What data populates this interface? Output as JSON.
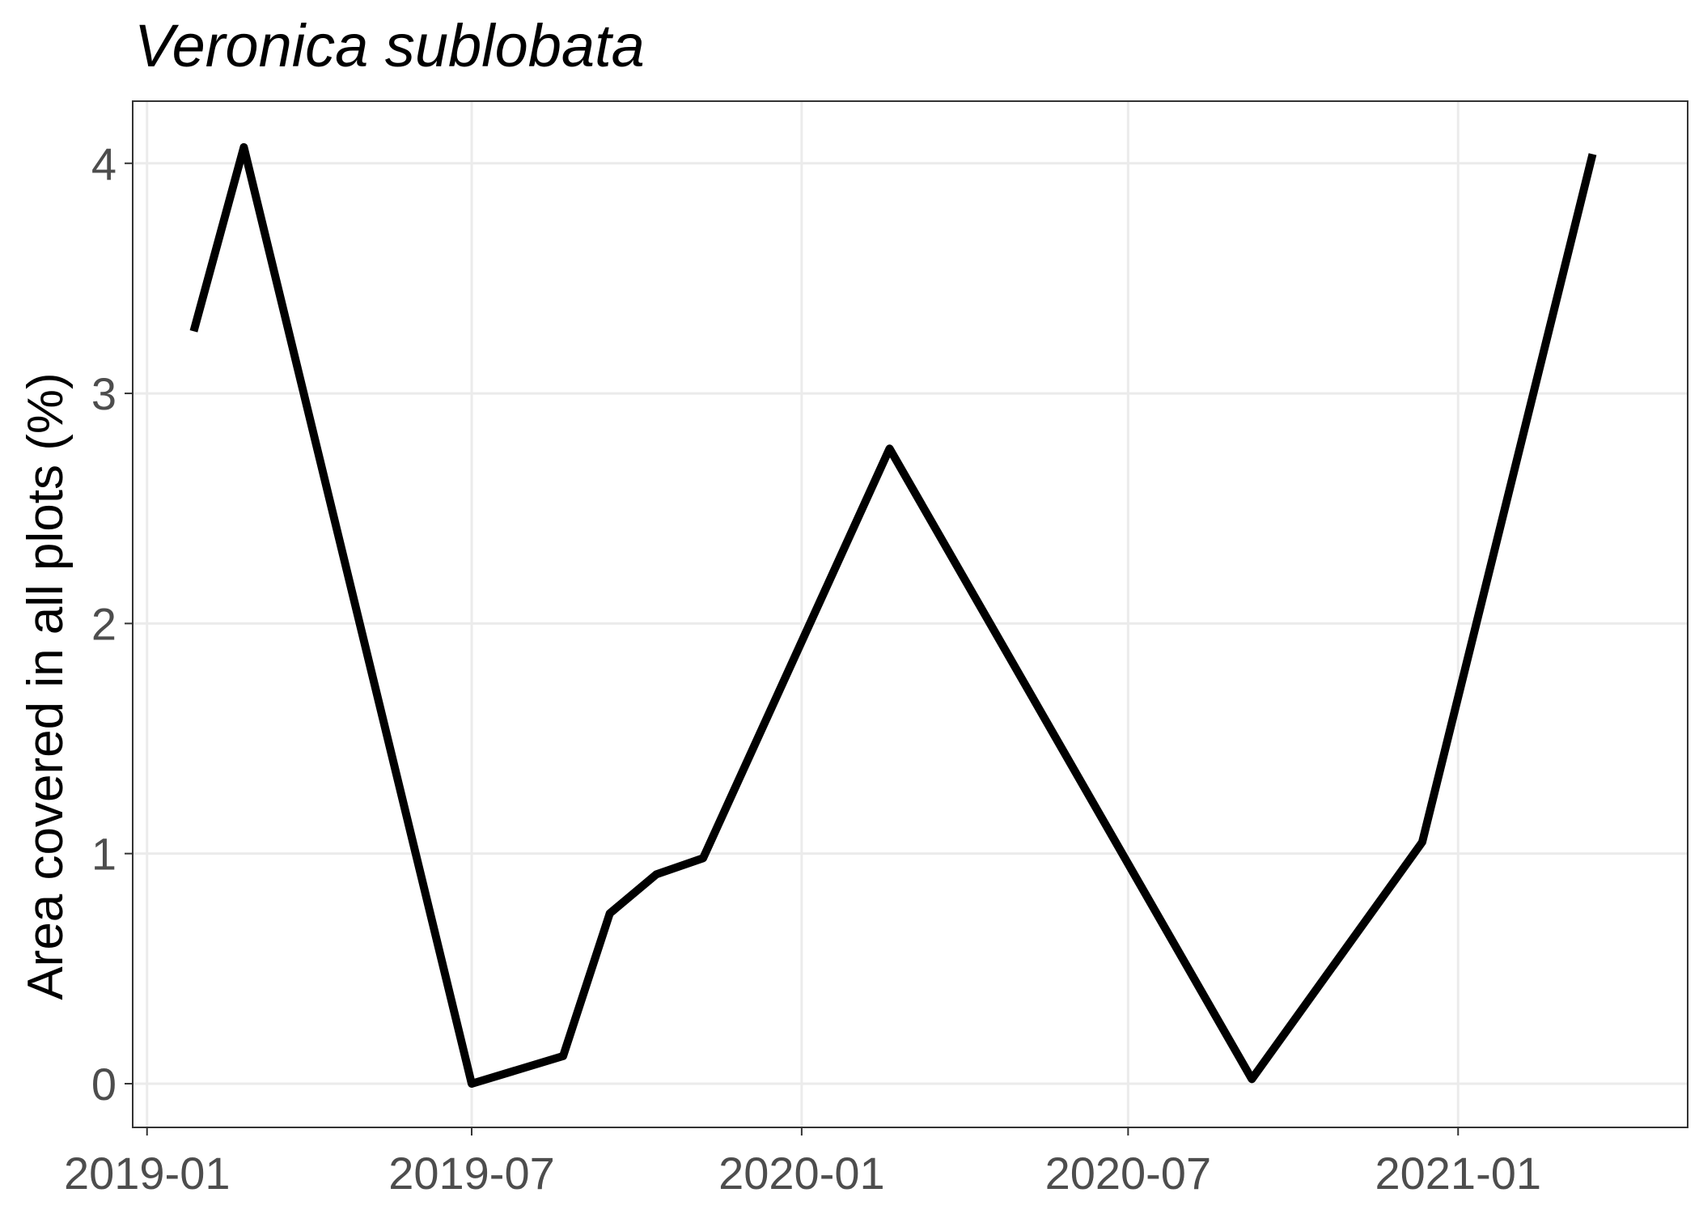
{
  "chart_data": {
    "type": "line",
    "title": "Veronica sublobata",
    "xlabel": "",
    "ylabel": "Area covered in all plots (%)",
    "x_ticks": [
      "2019-01",
      "2019-07",
      "2020-01",
      "2020-07",
      "2021-01"
    ],
    "y_ticks": [
      "0",
      "1",
      "2",
      "3",
      "4"
    ],
    "ylim": [
      -0.19,
      4.27
    ],
    "xlim": [
      "2018-12-24",
      "2021-05-09"
    ],
    "grid": true,
    "line_color": "#000000",
    "series": [
      {
        "x": [
          "2019-01-27",
          "2019-02-24",
          "2019-07-01",
          "2019-08-21",
          "2019-09-16",
          "2019-10-12",
          "2019-11-07",
          "2020-02-19",
          "2020-09-08",
          "2020-12-12",
          "2021-03-17"
        ],
        "y": [
          3.27,
          4.07,
          0.0,
          0.12,
          0.74,
          0.91,
          0.98,
          2.76,
          0.02,
          1.05,
          4.04
        ]
      }
    ]
  }
}
